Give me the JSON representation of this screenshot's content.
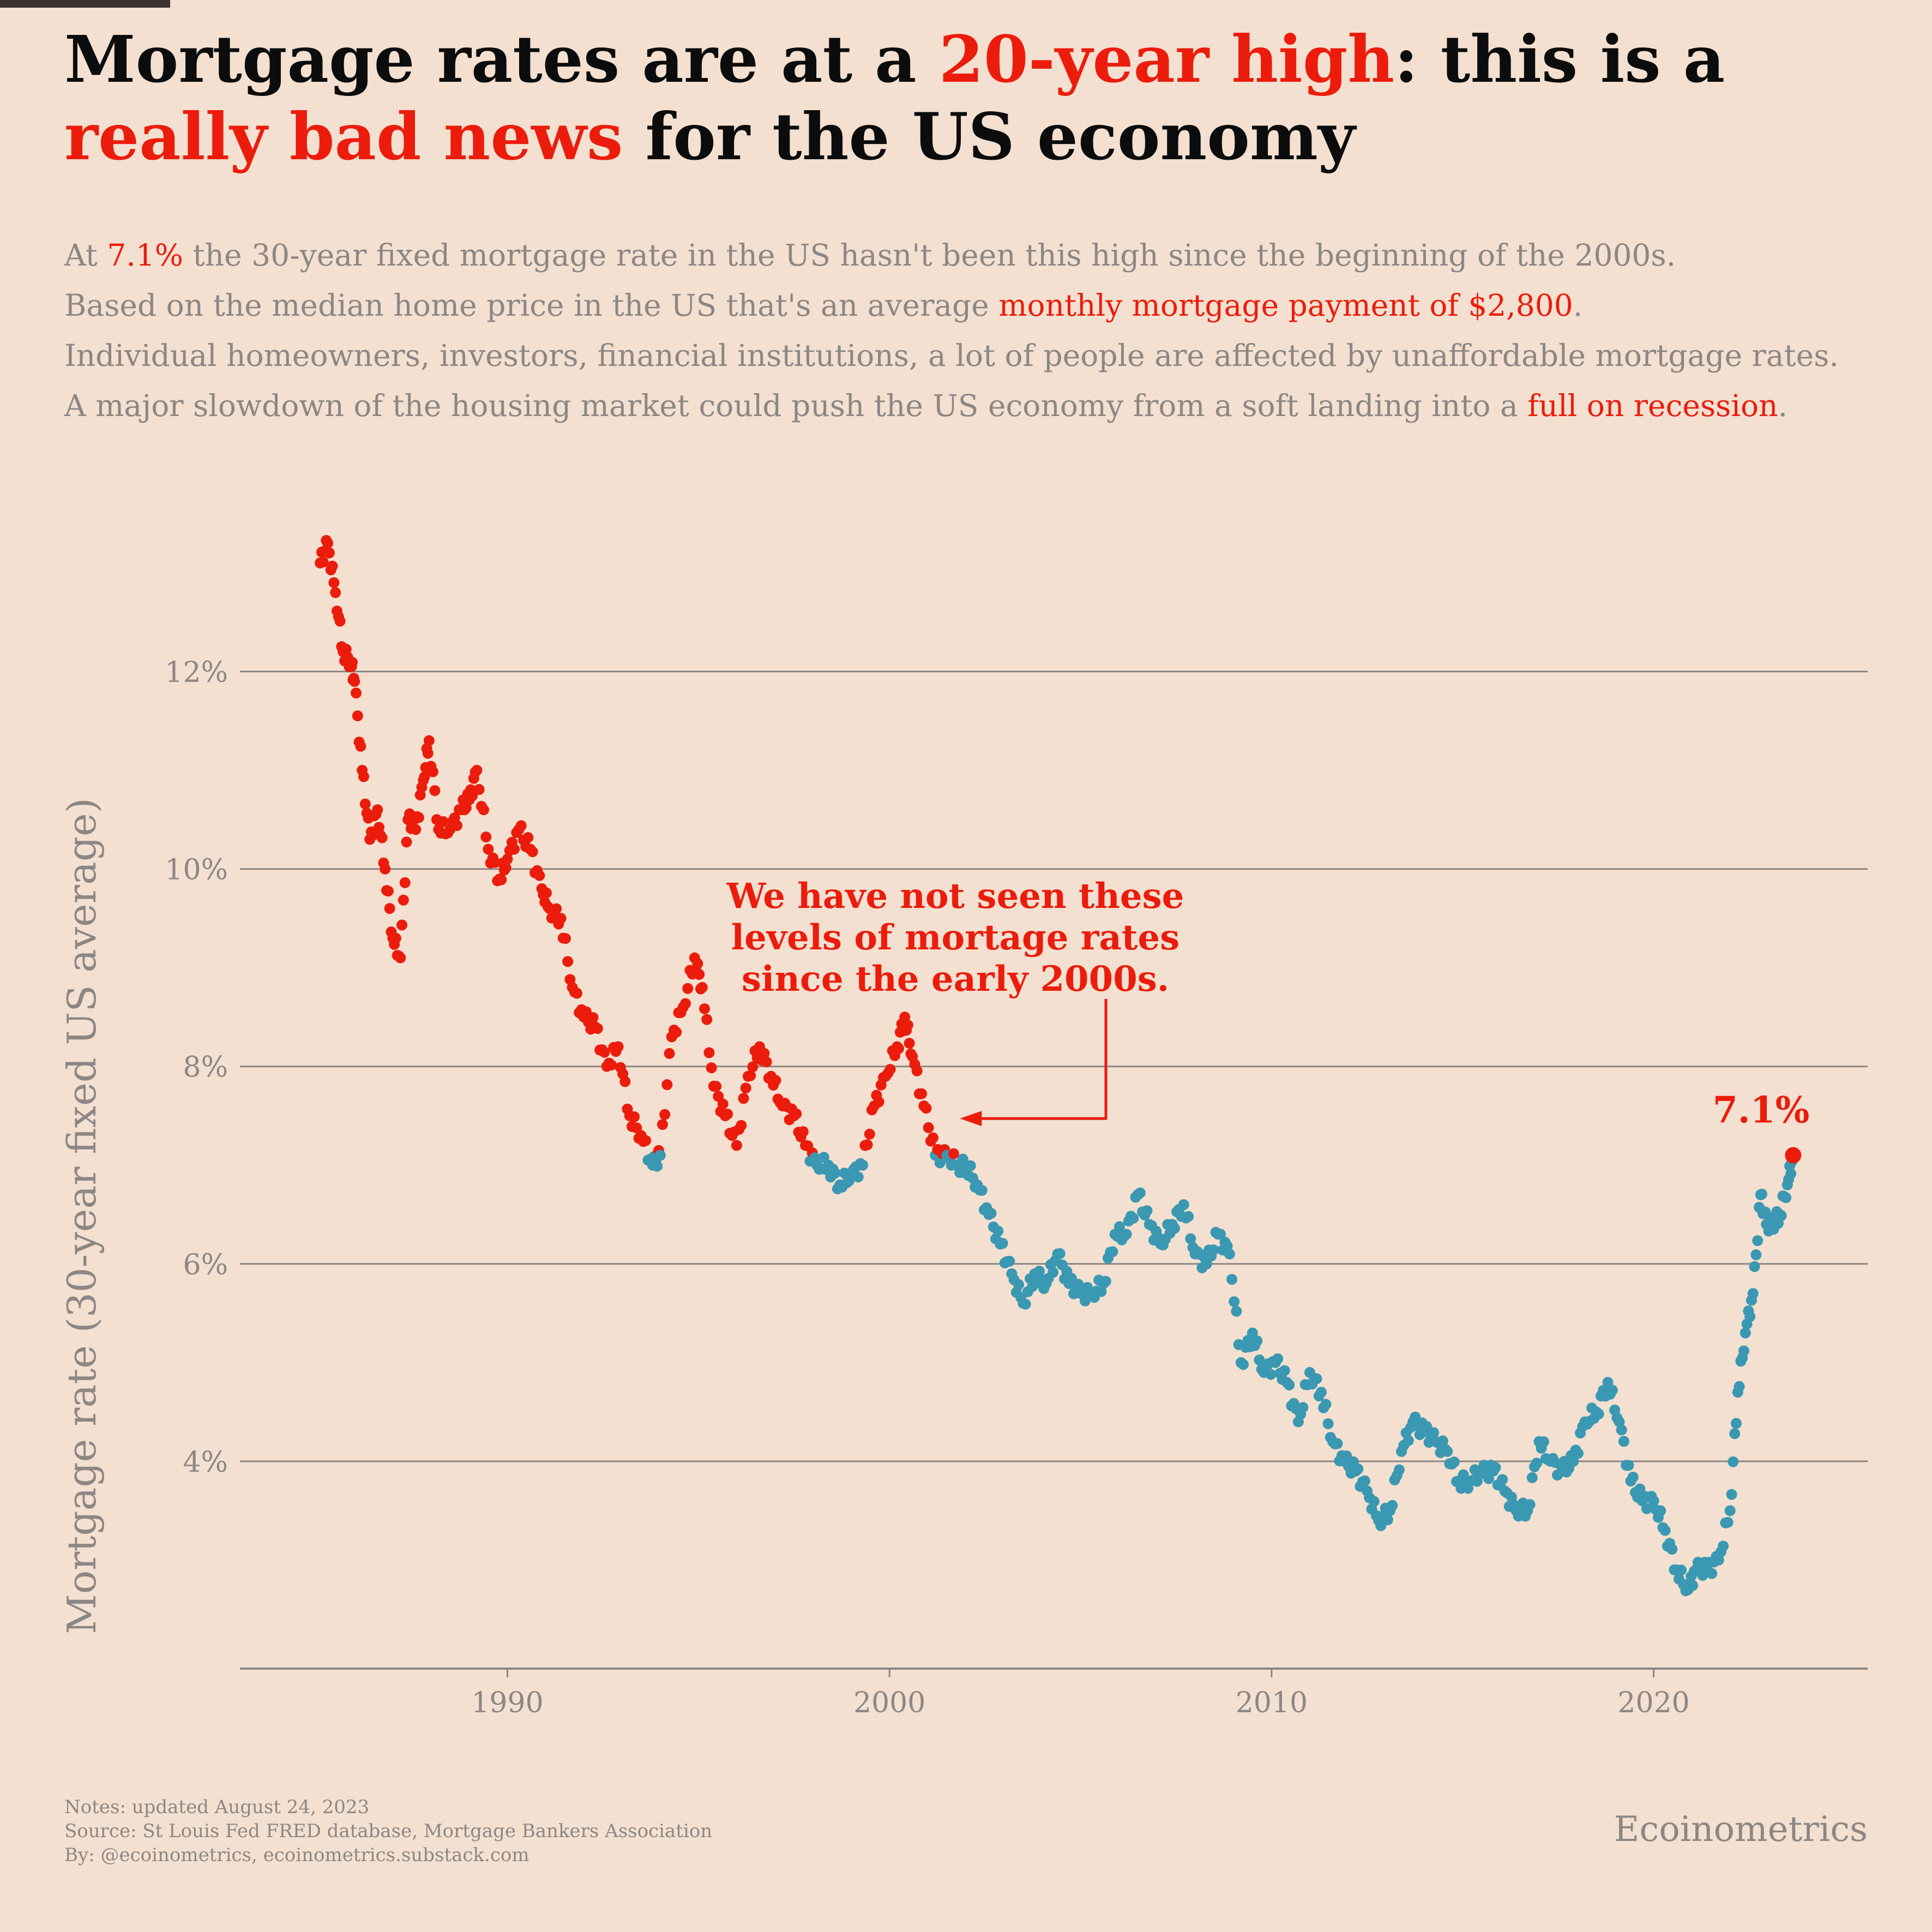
{
  "title": {
    "part1": "Mortgage rates are at a ",
    "highlight1": "20-year high",
    "part2": ": this is a",
    "highlight2": "really bad news",
    "part3": " for the US economy"
  },
  "subtitle": {
    "line1_a": "At ",
    "line1_hl": "7.1%",
    "line1_b": " the 30-year fixed mortgage rate in the US hasn't been this high since the beginning of the 2000s.",
    "line2_a": "Based on the median home price in the US that's an average ",
    "line2_hl": "monthly mortgage payment of $2,800",
    "line2_b": ".",
    "line3": "Individual homeowners, investors, financial institutions, a lot of people are affected by unaffordable mortgage rates.",
    "line4_a": "A major slowdown of the housing market could push the US economy from a soft landing into a ",
    "line4_hl": "full on recession",
    "line4_b": "."
  },
  "colors": {
    "above_threshold": "#ec1c0c",
    "below_threshold": "#3a98b2",
    "grid": "#8c8785",
    "text_muted": "#8c8785",
    "background": "#f3e0d0"
  },
  "chart_data": {
    "type": "scatter",
    "ylabel": "Mortgage rate (30-year fixed US average)",
    "xlim": [
      1983.0,
      2025.6
    ],
    "ylim": [
      1.9,
      13.5
    ],
    "y_ticks": [
      4,
      6,
      8,
      10,
      12
    ],
    "y_tick_labels": [
      "4%",
      "6%",
      "8%",
      "10%",
      "12%"
    ],
    "x_ticks": [
      1990,
      2000,
      2010,
      2020
    ],
    "x_tick_labels": [
      "1990",
      "2000",
      "2010",
      "2020"
    ],
    "threshold": 7.1,
    "grid": true,
    "series": [
      {
        "x": [
          1985.1,
          1985.3,
          1985.5,
          1985.7,
          1985.9,
          1986.0,
          1986.2,
          1986.4,
          1986.6,
          1986.8,
          1987.0,
          1987.2,
          1987.4,
          1987.6,
          1987.8,
          1987.95,
          1988.2,
          1988.5,
          1988.8,
          1989.0,
          1989.2,
          1989.5,
          1989.8,
          1990.0,
          1990.3,
          1990.6,
          1990.9,
          1991.1,
          1991.4,
          1991.7,
          1992.0,
          1992.3,
          1992.6,
          1992.9,
          1993.2,
          1993.5,
          1993.8,
          1994.0,
          1994.3,
          1994.6,
          1994.9,
          1995.1,
          1995.4,
          1995.7,
          1996.0,
          1996.3,
          1996.6,
          1996.9,
          1997.2,
          1997.5,
          1997.8,
          1998.1,
          1998.4,
          1998.7,
          1999.0,
          1999.3,
          1999.6,
          1999.9,
          2000.2,
          2000.4,
          2000.6,
          2000.9,
          2001.2,
          2001.5,
          2001.8,
          2002.0,
          2002.3,
          2002.6,
          2002.9,
          2003.2,
          2003.5,
          2003.8,
          2004.1,
          2004.4,
          2004.7,
          2005.0,
          2005.3,
          2005.6,
          2005.9,
          2006.2,
          2006.5,
          2006.8,
          2007.1,
          2007.4,
          2007.7,
          2008.0,
          2008.3,
          2008.6,
          2008.9,
          2009.2,
          2009.5,
          2009.8,
          2010.1,
          2010.4,
          2010.7,
          2011.0,
          2011.3,
          2011.6,
          2011.9,
          2012.2,
          2012.5,
          2012.8,
          2013.1,
          2013.4,
          2013.7,
          2014.0,
          2014.3,
          2014.6,
          2014.9,
          2015.2,
          2015.5,
          2015.8,
          2016.1,
          2016.4,
          2016.7,
          2017.0,
          2017.3,
          2017.6,
          2017.9,
          2018.2,
          2018.5,
          2018.8,
          2019.1,
          2019.4,
          2019.7,
          2020.0,
          2020.3,
          2020.6,
          2020.9,
          2021.1,
          2021.4,
          2021.7,
          2022.0,
          2022.2,
          2022.4,
          2022.6,
          2022.8,
          2022.95,
          2023.1,
          2023.3,
          2023.5,
          2023.65
        ],
        "y": [
          13.1,
          13.3,
          12.8,
          12.2,
          12.1,
          11.9,
          11.0,
          10.3,
          10.6,
          10.0,
          9.3,
          9.1,
          10.5,
          10.4,
          10.9,
          11.3,
          10.4,
          10.4,
          10.6,
          10.7,
          11.0,
          10.2,
          9.9,
          10.1,
          10.4,
          10.2,
          9.8,
          9.6,
          9.5,
          8.8,
          8.5,
          8.4,
          8.0,
          8.2,
          7.5,
          7.3,
          7.0,
          7.1,
          8.3,
          8.6,
          9.1,
          8.8,
          7.8,
          7.5,
          7.2,
          7.9,
          8.2,
          7.9,
          7.6,
          7.5,
          7.2,
          7.0,
          7.0,
          6.8,
          6.9,
          7.0,
          7.6,
          7.9,
          8.2,
          8.5,
          8.1,
          7.6,
          7.1,
          7.1,
          7.0,
          7.0,
          6.8,
          6.5,
          6.2,
          5.9,
          5.6,
          5.9,
          5.8,
          6.1,
          5.8,
          5.7,
          5.7,
          5.8,
          6.3,
          6.3,
          6.7,
          6.4,
          6.2,
          6.4,
          6.6,
          6.1,
          6.0,
          6.3,
          6.1,
          5.0,
          5.3,
          4.9,
          5.0,
          4.8,
          4.4,
          4.9,
          4.7,
          4.2,
          4.0,
          3.9,
          3.7,
          3.4,
          3.5,
          4.1,
          4.4,
          4.3,
          4.2,
          4.1,
          3.8,
          3.8,
          3.9,
          3.9,
          3.7,
          3.5,
          3.5,
          4.2,
          4.0,
          3.9,
          4.0,
          4.4,
          4.5,
          4.8,
          4.4,
          3.8,
          3.6,
          3.6,
          3.3,
          2.9,
          2.7,
          2.9,
          2.9,
          3.0,
          3.5,
          4.7,
          5.3,
          5.7,
          6.7,
          6.4,
          6.4,
          6.5,
          6.8,
          7.1
        ]
      }
    ],
    "annotation": {
      "lines": [
        "We have not seen these",
        "levels of mortage rates",
        "since the early 2000s."
      ],
      "points_to": {
        "x": 2001.7,
        "y": 7.5
      }
    },
    "last_point": {
      "x": 2023.65,
      "y": 7.1,
      "label": "7.1%"
    }
  },
  "footer": {
    "notes": "Notes: updated August 24, 2023",
    "source": "Source: St Louis Fed FRED database, Mortgage Bankers Association",
    "by": "By: @ecoinometrics, ecoinometrics.substack.com"
  },
  "brand": "Ecoinometrics"
}
